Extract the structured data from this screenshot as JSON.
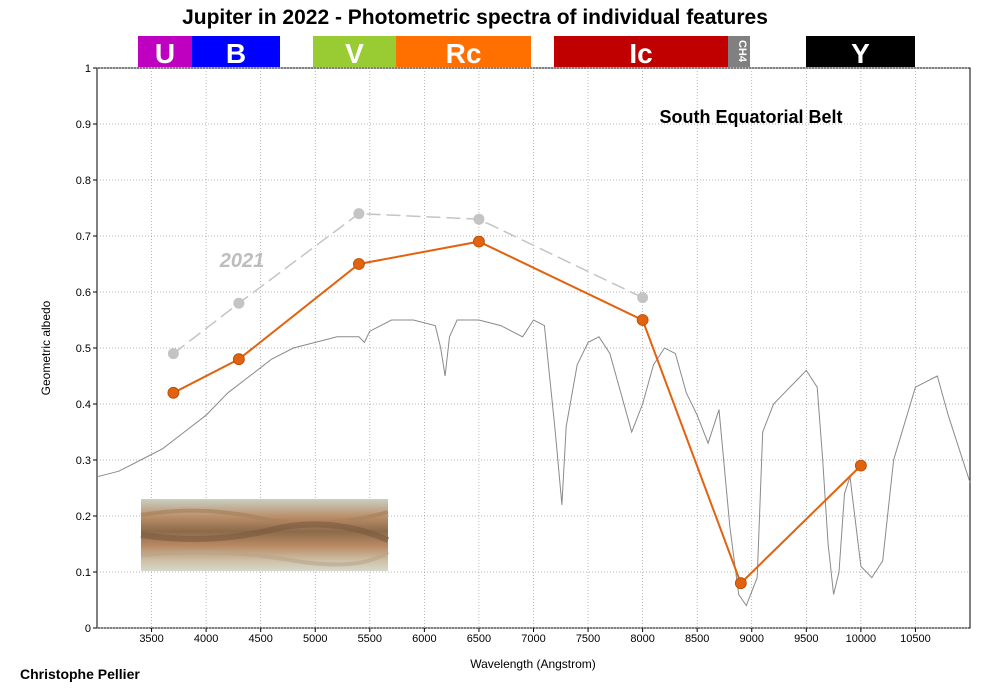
{
  "title": "Jupiter in 2022 - Photometric spectra of individual features",
  "credit": "Christophe Pellier",
  "feature_label": "South Equatorial Belt",
  "previous_year_label": "2021",
  "colors": {
    "current": "#e2620e",
    "previous": "#c4c4c4",
    "reference": "#8a8a8a",
    "grid": "#9a9a9a"
  },
  "filter_bands": [
    {
      "label": "U",
      "color": "#c000c0"
    },
    {
      "label": "B",
      "color": "#0000ff"
    },
    {
      "label": "V",
      "color": "#99cc33"
    },
    {
      "label": "Rc",
      "color": "#ff7000"
    },
    {
      "label": "Ic",
      "color": "#c00000"
    },
    {
      "label": "CH4",
      "color": "#808080"
    },
    {
      "label": "Y",
      "color": "#000000"
    }
  ],
  "chart_data": {
    "type": "line",
    "xlabel": "Wavelength (Angstrom)",
    "ylabel": "Geometric albedo",
    "xlim": [
      3000,
      11000
    ],
    "ylim": [
      0,
      1
    ],
    "x_ticks": [
      3500,
      4000,
      4500,
      5000,
      5500,
      6000,
      6500,
      7000,
      7500,
      8000,
      8500,
      9000,
      9500,
      10000,
      10500
    ],
    "y_ticks": [
      0,
      0.1,
      0.2,
      0.3,
      0.4,
      0.5,
      0.6,
      0.7,
      0.8,
      0.9,
      1
    ],
    "y_tick_labels": [
      "0",
      "0.1",
      "0.2",
      "0.3",
      "0.4",
      "0.5",
      "0.6",
      "0.7",
      "0.8",
      "0.9",
      "1"
    ],
    "grid": true,
    "series": [
      {
        "name": "2021",
        "style": "dashed",
        "x": [
          3700,
          4300,
          5400,
          6500,
          8000
        ],
        "y": [
          0.49,
          0.58,
          0.74,
          0.73,
          0.59
        ]
      },
      {
        "style": "solid-markers",
        "x": [
          3700,
          4300,
          5400,
          6500,
          8000,
          8900,
          10000
        ],
        "y": [
          0.42,
          0.48,
          0.65,
          0.69,
          0.55,
          0.08,
          0.29
        ]
      },
      {
        "style": "thin-reference",
        "x": [
          3000,
          3200,
          3400,
          3600,
          3800,
          4000,
          4200,
          4400,
          4600,
          4800,
          5000,
          5200,
          5400,
          5450,
          5500,
          5700,
          5900,
          6100,
          6150,
          6190,
          6230,
          6300,
          6500,
          6700,
          6900,
          7000,
          7100,
          7200,
          7260,
          7300,
          7400,
          7500,
          7600,
          7700,
          7800,
          7900,
          8000,
          8100,
          8200,
          8300,
          8400,
          8500,
          8600,
          8700,
          8800,
          8880,
          8950,
          9050,
          9100,
          9200,
          9300,
          9400,
          9500,
          9600,
          9650,
          9700,
          9750,
          9800,
          9850,
          9900,
          10000,
          10100,
          10200,
          10300,
          10500,
          10700,
          10800,
          11000
        ],
        "y": [
          0.27,
          0.28,
          0.3,
          0.32,
          0.35,
          0.38,
          0.42,
          0.45,
          0.48,
          0.5,
          0.51,
          0.52,
          0.52,
          0.51,
          0.53,
          0.55,
          0.55,
          0.54,
          0.5,
          0.45,
          0.52,
          0.55,
          0.55,
          0.54,
          0.52,
          0.55,
          0.54,
          0.35,
          0.22,
          0.36,
          0.47,
          0.51,
          0.52,
          0.49,
          0.42,
          0.35,
          0.4,
          0.47,
          0.5,
          0.49,
          0.42,
          0.38,
          0.33,
          0.39,
          0.18,
          0.06,
          0.04,
          0.09,
          0.35,
          0.4,
          0.42,
          0.44,
          0.46,
          0.43,
          0.3,
          0.15,
          0.06,
          0.1,
          0.24,
          0.27,
          0.11,
          0.09,
          0.12,
          0.3,
          0.43,
          0.45,
          0.38,
          0.26
        ]
      }
    ]
  }
}
